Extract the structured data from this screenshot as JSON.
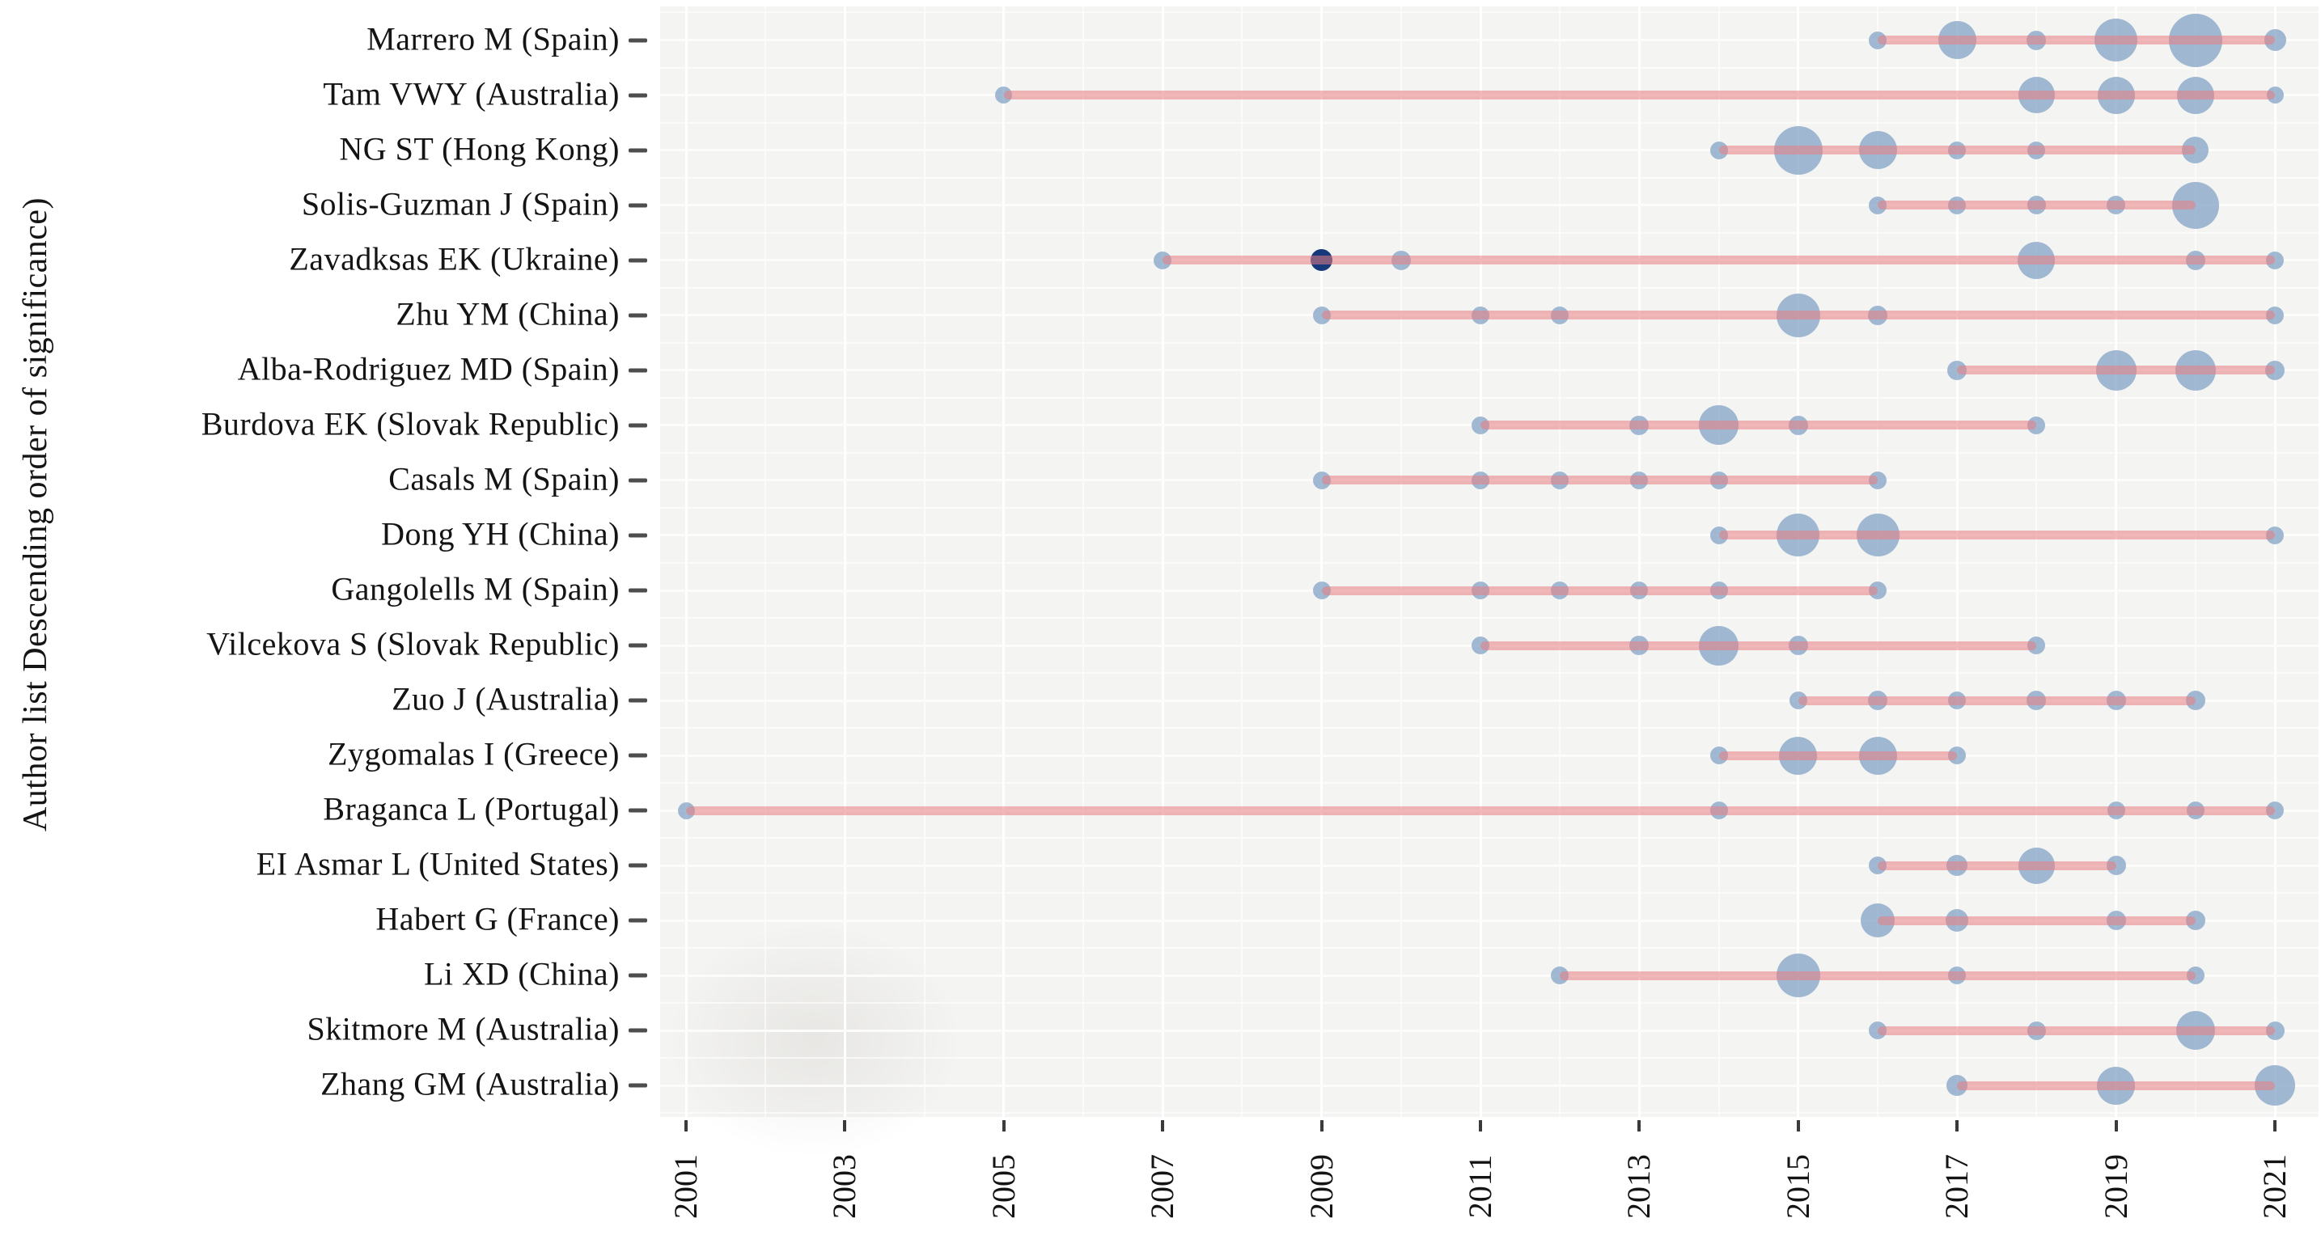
{
  "style": {
    "panel_bg": "#f4f4f2",
    "grid_major": "#ffffff",
    "grid_minor": "rgba(255,255,255,0.6)",
    "timeline_color": "rgba(232,126,130,0.55)",
    "bubble_color": "rgba(126,159,195,0.72)",
    "bubble_dark_color": "#15397b",
    "axis_text_color": "#141414",
    "tick_color": "#3a3a3a"
  },
  "chart_data": {
    "type": "scatter",
    "subtype": "bubble-timeline (authors' production over time)",
    "title": "",
    "xlabel": "",
    "ylabel": "Author list Descending order of significance)",
    "x_domain": [
      2001,
      2021
    ],
    "x_tick_years": [
      2001,
      2003,
      2005,
      2007,
      2009,
      2011,
      2013,
      2015,
      2017,
      2019,
      2021
    ],
    "x_tick_labels": [
      "2001",
      "2003",
      "2005",
      "2007",
      "2009",
      "2011",
      "2013",
      "2015",
      "2017",
      "2019",
      "2021"
    ],
    "grid": true,
    "legend": "none",
    "highlight": {
      "author": "Zavadksas EK (Ukraine)",
      "year": 2009,
      "color": "#15397b"
    },
    "authors": [
      {
        "label": "Marrero M (Spain)",
        "line": [
          2016,
          2021
        ],
        "bubbles": [
          {
            "year": 2016,
            "d": 22
          },
          {
            "year": 2017,
            "d": 47
          },
          {
            "year": 2018,
            "d": 24
          },
          {
            "year": 2019,
            "d": 53
          },
          {
            "year": 2020,
            "d": 66
          },
          {
            "year": 2021,
            "d": 27
          }
        ]
      },
      {
        "label": "Tam VWY (Australia)",
        "line": [
          2005,
          2021
        ],
        "bubbles": [
          {
            "year": 2005,
            "d": 21
          },
          {
            "year": 2018,
            "d": 45
          },
          {
            "year": 2019,
            "d": 46
          },
          {
            "year": 2020,
            "d": 46
          },
          {
            "year": 2021,
            "d": 21
          }
        ]
      },
      {
        "label": "NG ST (Hong Kong)",
        "line": [
          2014,
          2020
        ],
        "bubbles": [
          {
            "year": 2014,
            "d": 22
          },
          {
            "year": 2015,
            "d": 60
          },
          {
            "year": 2016,
            "d": 47
          },
          {
            "year": 2017,
            "d": 22
          },
          {
            "year": 2018,
            "d": 22
          },
          {
            "year": 2020,
            "d": 33
          }
        ]
      },
      {
        "label": "Solis-Guzman J (Spain)",
        "line": [
          2016,
          2020
        ],
        "bubbles": [
          {
            "year": 2016,
            "d": 22
          },
          {
            "year": 2017,
            "d": 22
          },
          {
            "year": 2018,
            "d": 23
          },
          {
            "year": 2019,
            "d": 23
          },
          {
            "year": 2020,
            "d": 58
          }
        ]
      },
      {
        "label": "Zavadksas EK (Ukraine)",
        "line": [
          2007,
          2021
        ],
        "bubbles": [
          {
            "year": 2007,
            "d": 22
          },
          {
            "year": 2009,
            "d": 27,
            "dark": true
          },
          {
            "year": 2010,
            "d": 24
          },
          {
            "year": 2018,
            "d": 46
          },
          {
            "year": 2020,
            "d": 24
          },
          {
            "year": 2021,
            "d": 22
          }
        ]
      },
      {
        "label": "Zhu YM (China)",
        "line": [
          2009,
          2021
        ],
        "bubbles": [
          {
            "year": 2009,
            "d": 22
          },
          {
            "year": 2011,
            "d": 22
          },
          {
            "year": 2012,
            "d": 22
          },
          {
            "year": 2015,
            "d": 54
          },
          {
            "year": 2016,
            "d": 24
          },
          {
            "year": 2021,
            "d": 22
          }
        ]
      },
      {
        "label": "Alba-Rodriguez MD (Spain)",
        "line": [
          2017,
          2021
        ],
        "bubbles": [
          {
            "year": 2017,
            "d": 24
          },
          {
            "year": 2019,
            "d": 50
          },
          {
            "year": 2020,
            "d": 50
          },
          {
            "year": 2021,
            "d": 24
          }
        ]
      },
      {
        "label": "Burdova EK (Slovak Republic)",
        "line": [
          2011,
          2018
        ],
        "bubbles": [
          {
            "year": 2011,
            "d": 22
          },
          {
            "year": 2013,
            "d": 24
          },
          {
            "year": 2014,
            "d": 49
          },
          {
            "year": 2015,
            "d": 24
          },
          {
            "year": 2018,
            "d": 22
          }
        ]
      },
      {
        "label": "Casals M (Spain)",
        "line": [
          2009,
          2016
        ],
        "bubbles": [
          {
            "year": 2009,
            "d": 22
          },
          {
            "year": 2011,
            "d": 22
          },
          {
            "year": 2012,
            "d": 22
          },
          {
            "year": 2013,
            "d": 22
          },
          {
            "year": 2014,
            "d": 22
          },
          {
            "year": 2016,
            "d": 22
          }
        ]
      },
      {
        "label": "Dong YH (China)",
        "line": [
          2014,
          2021
        ],
        "bubbles": [
          {
            "year": 2014,
            "d": 22
          },
          {
            "year": 2015,
            "d": 53
          },
          {
            "year": 2016,
            "d": 53
          },
          {
            "year": 2021,
            "d": 22
          }
        ]
      },
      {
        "label": "Gangolells M (Spain)",
        "line": [
          2009,
          2016
        ],
        "bubbles": [
          {
            "year": 2009,
            "d": 22
          },
          {
            "year": 2011,
            "d": 22
          },
          {
            "year": 2012,
            "d": 22
          },
          {
            "year": 2013,
            "d": 22
          },
          {
            "year": 2014,
            "d": 22
          },
          {
            "year": 2016,
            "d": 22
          }
        ]
      },
      {
        "label": "Vilcekova S (Slovak Republic)",
        "line": [
          2011,
          2018
        ],
        "bubbles": [
          {
            "year": 2011,
            "d": 22
          },
          {
            "year": 2013,
            "d": 24
          },
          {
            "year": 2014,
            "d": 49
          },
          {
            "year": 2015,
            "d": 24
          },
          {
            "year": 2018,
            "d": 22
          }
        ]
      },
      {
        "label": "Zuo J (Australia)",
        "line": [
          2015,
          2020
        ],
        "bubbles": [
          {
            "year": 2015,
            "d": 22
          },
          {
            "year": 2016,
            "d": 24
          },
          {
            "year": 2017,
            "d": 22
          },
          {
            "year": 2018,
            "d": 24
          },
          {
            "year": 2019,
            "d": 24
          },
          {
            "year": 2020,
            "d": 24
          }
        ]
      },
      {
        "label": "Zygomalas I (Greece)",
        "line": [
          2014,
          2017
        ],
        "bubbles": [
          {
            "year": 2014,
            "d": 22
          },
          {
            "year": 2015,
            "d": 47
          },
          {
            "year": 2016,
            "d": 47
          },
          {
            "year": 2017,
            "d": 22
          }
        ]
      },
      {
        "label": "Braganca L (Portugal)",
        "line": [
          2001,
          2021
        ],
        "bubbles": [
          {
            "year": 2001,
            "d": 21
          },
          {
            "year": 2014,
            "d": 22
          },
          {
            "year": 2019,
            "d": 22
          },
          {
            "year": 2020,
            "d": 22
          },
          {
            "year": 2021,
            "d": 22
          }
        ]
      },
      {
        "label": "EI Asmar L (United States)",
        "line": [
          2016,
          2019
        ],
        "bubbles": [
          {
            "year": 2016,
            "d": 22
          },
          {
            "year": 2017,
            "d": 26
          },
          {
            "year": 2018,
            "d": 45
          },
          {
            "year": 2019,
            "d": 24
          }
        ]
      },
      {
        "label": "Habert G (France)",
        "line": [
          2016,
          2020
        ],
        "bubbles": [
          {
            "year": 2016,
            "d": 42
          },
          {
            "year": 2017,
            "d": 28
          },
          {
            "year": 2019,
            "d": 24
          },
          {
            "year": 2020,
            "d": 24
          }
        ]
      },
      {
        "label": "Li XD (China)",
        "line": [
          2012,
          2020
        ],
        "bubbles": [
          {
            "year": 2012,
            "d": 22
          },
          {
            "year": 2015,
            "d": 54
          },
          {
            "year": 2017,
            "d": 22
          },
          {
            "year": 2020,
            "d": 22
          }
        ]
      },
      {
        "label": "Skitmore M (Australia)",
        "line": [
          2016,
          2021
        ],
        "bubbles": [
          {
            "year": 2016,
            "d": 22
          },
          {
            "year": 2018,
            "d": 23
          },
          {
            "year": 2020,
            "d": 48
          },
          {
            "year": 2021,
            "d": 23
          }
        ]
      },
      {
        "label": "Zhang GM (Australia)",
        "line": [
          2017,
          2021
        ],
        "bubbles": [
          {
            "year": 2017,
            "d": 26
          },
          {
            "year": 2019,
            "d": 47
          },
          {
            "year": 2021,
            "d": 50
          }
        ]
      }
    ]
  }
}
